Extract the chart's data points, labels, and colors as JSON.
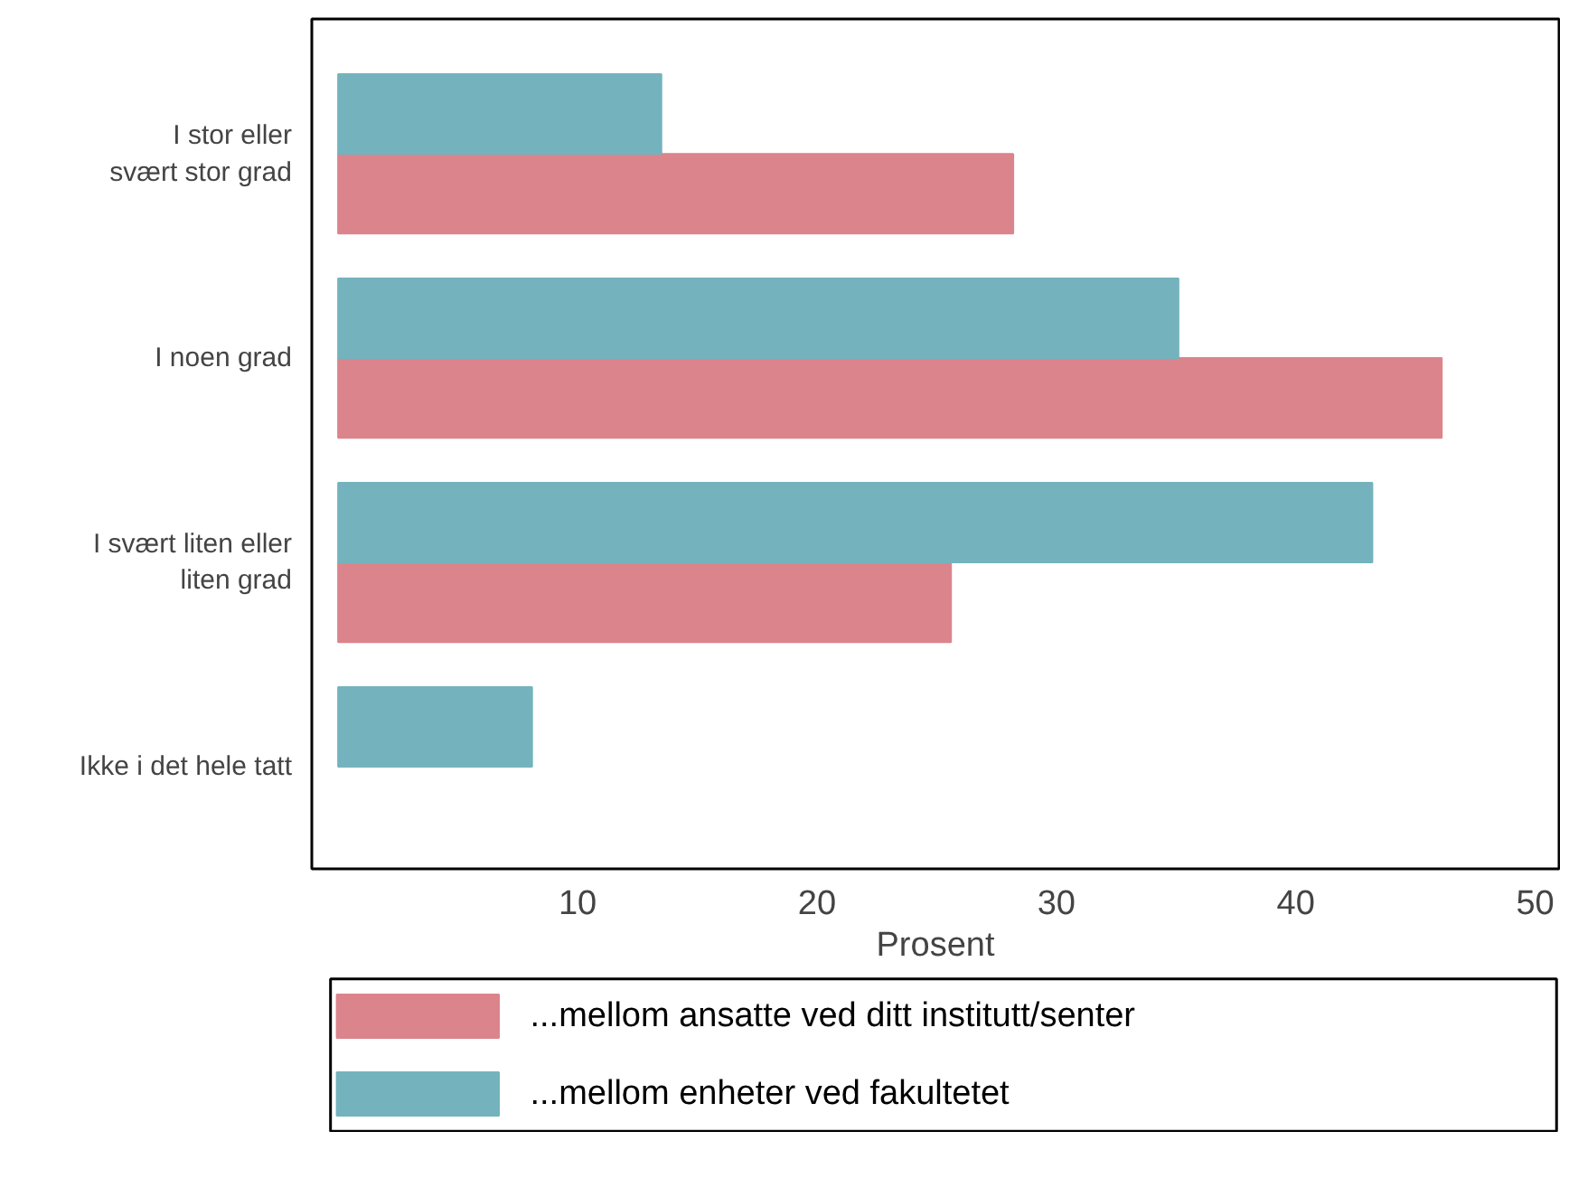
{
  "chart_data": {
    "type": "bar",
    "orientation": "horizontal",
    "xlabel": "Prosent",
    "categories": [
      "I stor eller\nsvært stor grad",
      "I noen grad",
      "I svært liten eller\nliten grad",
      "Ikke i det hele tatt"
    ],
    "series": [
      {
        "name": "...mellom ansatte ved ditt institutt/senter",
        "color": "#db848c",
        "values": [
          28.2,
          46.1,
          25.6,
          null
        ]
      },
      {
        "name": "...mellom enheter ved fakultetet",
        "color": "#74b3bd",
        "values": [
          13.5,
          35.1,
          43.2,
          8.1
        ]
      }
    ],
    "xlim": [
      -1.1,
      51
    ],
    "xticks": [
      10,
      20,
      30,
      40,
      50
    ],
    "legend": "bottom"
  }
}
